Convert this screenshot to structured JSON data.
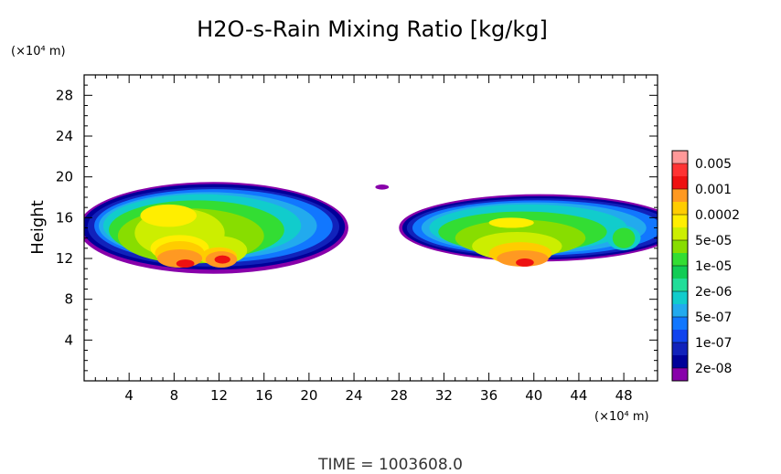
{
  "chart_data": {
    "type": "contour",
    "title": "H2O-s-Rain Mixing Ratio [kg/kg]",
    "ylabel": "Height",
    "x_unit_label": "(×10⁴ m)",
    "y_unit_label": "(×10⁴ m)",
    "footer": "TIME  =  1003608.0",
    "xlim": [
      0,
      51
    ],
    "ylim": [
      0,
      30
    ],
    "x_ticks": [
      4,
      8,
      12,
      16,
      20,
      24,
      28,
      32,
      36,
      40,
      44,
      48
    ],
    "y_ticks": [
      4,
      8,
      12,
      16,
      20,
      24,
      28
    ],
    "x_minor_step": 1,
    "y_minor_step": 1,
    "colorbar": {
      "levels": [
        "0.005",
        "0.001",
        "0.0002",
        "5e-05",
        "1e-05",
        "2e-06",
        "5e-07",
        "1e-07",
        "2e-08"
      ],
      "colors": [
        "#ff9999",
        "#ff3333",
        "#ee1111",
        "#ff9922",
        "#ffcc00",
        "#ffee00",
        "#ccee00",
        "#88dd00",
        "#33dd33",
        "#11cc55",
        "#22dd99",
        "#11cccc",
        "#22aaee",
        "#1177ff",
        "#1144ee",
        "#1122bb",
        "#000099",
        "#8800aa"
      ]
    },
    "bands": [
      {
        "level": 0,
        "color": "#8800aa",
        "blobs": [
          {
            "cx": 11.5,
            "cy": 15.0,
            "rx": 12.0,
            "ry": 4.5
          },
          {
            "cx": 40.5,
            "cy": 15.0,
            "rx": 12.5,
            "ry": 3.3
          },
          {
            "cx": 26.5,
            "cy": 19.0,
            "rx": 0.6,
            "ry": 0.25
          }
        ]
      },
      {
        "level": 1,
        "color": "#000099",
        "blobs": [
          {
            "cx": 11.5,
            "cy": 15.1,
            "rx": 11.7,
            "ry": 4.2
          },
          {
            "cx": 40.5,
            "cy": 15.0,
            "rx": 12.2,
            "ry": 3.1
          }
        ]
      },
      {
        "level": 2,
        "color": "#1122bb",
        "blobs": [
          {
            "cx": 11.5,
            "cy": 15.1,
            "rx": 11.2,
            "ry": 3.9
          },
          {
            "cx": 40.5,
            "cy": 15.0,
            "rx": 11.8,
            "ry": 2.9
          }
        ]
      },
      {
        "level": 3,
        "color": "#1177ff",
        "blobs": [
          {
            "cx": 11.5,
            "cy": 15.2,
            "rx": 10.6,
            "ry": 3.6
          },
          {
            "cx": 40.3,
            "cy": 15.0,
            "rx": 11.1,
            "ry": 2.7
          }
        ]
      },
      {
        "level": 4,
        "color": "#22aaee",
        "blobs": [
          {
            "cx": 11.0,
            "cy": 15.2,
            "rx": 9.7,
            "ry": 3.3
          },
          {
            "cx": 40.0,
            "cy": 15.0,
            "rx": 10.0,
            "ry": 2.5
          }
        ]
      },
      {
        "level": 5,
        "color": "#11cccc",
        "blobs": [
          {
            "cx": 10.5,
            "cy": 15.2,
            "rx": 8.8,
            "ry": 3.1
          },
          {
            "cx": 39.5,
            "cy": 15.0,
            "rx": 8.8,
            "ry": 2.3
          },
          {
            "cx": 48.0,
            "cy": 14.0,
            "rx": 1.5,
            "ry": 1.2
          }
        ]
      },
      {
        "level": 6,
        "color": "#33dd33",
        "blobs": [
          {
            "cx": 10.0,
            "cy": 14.8,
            "rx": 7.8,
            "ry": 2.9
          },
          {
            "cx": 39.0,
            "cy": 14.6,
            "rx": 7.5,
            "ry": 2.0
          },
          {
            "cx": 48.0,
            "cy": 14.0,
            "rx": 1.0,
            "ry": 1.0
          }
        ]
      },
      {
        "level": 7,
        "color": "#88dd00",
        "blobs": [
          {
            "cx": 9.5,
            "cy": 14.2,
            "rx": 6.5,
            "ry": 2.7
          },
          {
            "cx": 38.8,
            "cy": 14.0,
            "rx": 5.8,
            "ry": 1.8
          }
        ]
      },
      {
        "level": 8,
        "color": "#ccee00",
        "blobs": [
          {
            "cx": 8.5,
            "cy": 14.5,
            "rx": 4.0,
            "ry": 2.4
          },
          {
            "cx": 12.0,
            "cy": 12.8,
            "rx": 2.5,
            "ry": 1.4
          },
          {
            "cx": 38.5,
            "cy": 13.2,
            "rx": 4.0,
            "ry": 1.4
          }
        ]
      },
      {
        "level": 9,
        "color": "#ffee00",
        "blobs": [
          {
            "cx": 7.5,
            "cy": 16.2,
            "rx": 2.5,
            "ry": 1.1
          },
          {
            "cx": 8.5,
            "cy": 13.0,
            "rx": 2.6,
            "ry": 1.3
          },
          {
            "cx": 38.0,
            "cy": 15.5,
            "rx": 2.0,
            "ry": 0.5
          }
        ]
      },
      {
        "level": 10,
        "color": "#ffcc00",
        "blobs": [
          {
            "cx": 8.5,
            "cy": 12.5,
            "rx": 2.2,
            "ry": 1.2
          },
          {
            "cx": 12.0,
            "cy": 12.2,
            "rx": 1.6,
            "ry": 0.9
          },
          {
            "cx": 38.8,
            "cy": 12.5,
            "rx": 2.8,
            "ry": 1.1
          }
        ]
      },
      {
        "level": 11,
        "color": "#ff9922",
        "blobs": [
          {
            "cx": 8.5,
            "cy": 12.0,
            "rx": 2.0,
            "ry": 0.9
          },
          {
            "cx": 12.2,
            "cy": 11.9,
            "rx": 1.4,
            "ry": 0.8
          },
          {
            "cx": 39.0,
            "cy": 12.0,
            "rx": 2.3,
            "ry": 0.8
          }
        ]
      },
      {
        "level": 12,
        "color": "#ee1111",
        "blobs": [
          {
            "cx": 9.0,
            "cy": 11.5,
            "rx": 0.8,
            "ry": 0.4
          },
          {
            "cx": 12.3,
            "cy": 11.9,
            "rx": 0.7,
            "ry": 0.4
          },
          {
            "cx": 39.2,
            "cy": 11.6,
            "rx": 0.8,
            "ry": 0.4
          }
        ]
      }
    ]
  }
}
